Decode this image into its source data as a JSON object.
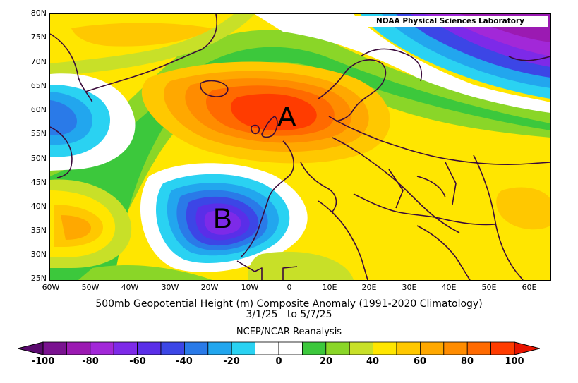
{
  "credit": "NOAA Physical Sciences Laboratory",
  "title_line1": "500mb Geopotential Height (m) Composite Anomaly (1991-2020 Climatology)",
  "title_line2": "3/1/25   to 5/7/25",
  "colorbar_title": "NCEP/NCAR Reanalysis",
  "markers": {
    "high": "A",
    "low": "B"
  },
  "lat_labels": [
    "80N",
    "75N",
    "70N",
    "65N",
    "60N",
    "55N",
    "50N",
    "45N",
    "40N",
    "35N",
    "30N",
    "25N"
  ],
  "lon_labels": [
    "60W",
    "50W",
    "40W",
    "30W",
    "20W",
    "10W",
    "0",
    "10E",
    "20E",
    "30E",
    "40E",
    "50E",
    "60E"
  ],
  "colorbar_labels": [
    "-100",
    "-80",
    "-60",
    "-40",
    "-20",
    "0",
    "20",
    "40",
    "60",
    "80",
    "100"
  ],
  "colors": {
    "n100": "#5a0a6e",
    "n90": "#7a1290",
    "n80": "#9b1ab2",
    "n70": "#a228d8",
    "n60": "#7d2ae8",
    "n50": "#5a2ee8",
    "n40": "#3c46e6",
    "n30": "#2a7ae8",
    "n20": "#22a6ee",
    "n10": "#2ad2f2",
    "zero": "#ffffff",
    "p10": "#3cc83c",
    "p20": "#8ad628",
    "p30": "#c8e028",
    "p40": "#ffe600",
    "p50": "#ffc800",
    "p60": "#ffa800",
    "p70": "#ff8c00",
    "p80": "#ff6a00",
    "p90": "#ff3c00",
    "p100": "#e81400",
    "land": "#3a0a3a"
  }
}
